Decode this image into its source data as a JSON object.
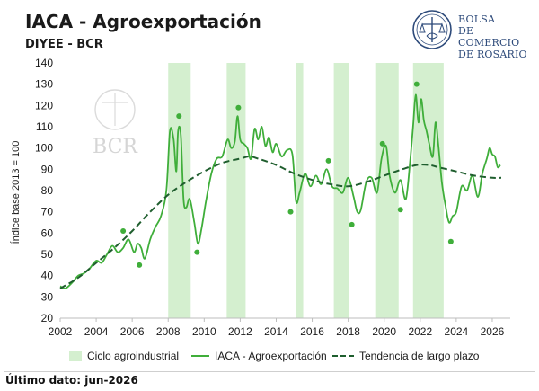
{
  "header": {
    "title": "IACA - Agroexportación",
    "subtitle": "DIYEE - BCR",
    "brand_lines": [
      "BOLSA",
      "DE COMERCIO",
      "DE ROSARIO"
    ],
    "watermark": "BCR"
  },
  "footnote": "Último dato: jun-2026",
  "colors": {
    "band": "#d4efcf",
    "line": "#3fae3a",
    "dots": "#3fae3a",
    "trend": "#1f5e2e",
    "brand": "#2d4a7a"
  },
  "chart_data": {
    "type": "line",
    "title": "IACA - Agroexportación",
    "ylabel": "Índice base 2013 = 100",
    "xlabel": "",
    "xlim": [
      2002,
      2027
    ],
    "ylim": [
      20,
      140
    ],
    "yticks": [
      20,
      30,
      40,
      50,
      60,
      70,
      80,
      90,
      100,
      110,
      120,
      130,
      140
    ],
    "xticks": [
      2002,
      2004,
      2006,
      2008,
      2010,
      2012,
      2014,
      2016,
      2018,
      2020,
      2022,
      2024,
      2026
    ],
    "grid": false,
    "legend_position": "bottom",
    "legend": [
      "Ciclo agroindustrial",
      "IACA - Agroexportación",
      "Tendencia de largo plazo"
    ],
    "cycles": [
      [
        2008.0,
        2009.25
      ],
      [
        2011.25,
        2012.3
      ],
      [
        2015.1,
        2015.5
      ],
      [
        2017.2,
        2018.05
      ],
      [
        2019.5,
        2020.8
      ],
      [
        2021.6,
        2023.3
      ]
    ],
    "series": [
      {
        "name": "IACA - Agroexportación",
        "style": "solid",
        "x": [
          2002.0,
          2002.3,
          2002.7,
          2003.0,
          2003.3,
          2003.6,
          2004.0,
          2004.3,
          2004.6,
          2004.9,
          2005.2,
          2005.5,
          2005.8,
          2006.1,
          2006.3,
          2006.5,
          2006.7,
          2007.0,
          2007.3,
          2007.6,
          2007.9,
          2008.1,
          2008.3,
          2008.45,
          2008.55,
          2008.7,
          2008.85,
          2009.0,
          2009.2,
          2009.45,
          2009.65,
          2009.85,
          2010.1,
          2010.4,
          2010.7,
          2011.0,
          2011.3,
          2011.5,
          2011.7,
          2011.85,
          2012.0,
          2012.2,
          2012.4,
          2012.6,
          2012.8,
          2013.0,
          2013.2,
          2013.4,
          2013.6,
          2013.8,
          2014.0,
          2014.3,
          2014.6,
          2014.9,
          2015.1,
          2015.3,
          2015.6,
          2015.9,
          2016.2,
          2016.5,
          2016.8,
          2017.1,
          2017.4,
          2017.7,
          2018.0,
          2018.3,
          2018.5,
          2018.7,
          2019.0,
          2019.3,
          2019.6,
          2019.85,
          2020.1,
          2020.3,
          2020.6,
          2020.9,
          2021.2,
          2021.45,
          2021.6,
          2021.75,
          2021.9,
          2022.05,
          2022.2,
          2022.35,
          2022.5,
          2022.7,
          2022.85,
          2023.0,
          2023.2,
          2023.4,
          2023.6,
          2023.8,
          2024.0,
          2024.3,
          2024.6,
          2024.9,
          2025.2,
          2025.45,
          2025.7,
          2025.85,
          2026.0,
          2026.15,
          2026.3,
          2026.45
        ],
        "values": [
          35,
          34,
          37,
          40,
          41,
          43,
          47,
          46,
          50,
          54,
          51,
          53,
          57,
          51,
          55,
          53,
          48,
          57,
          63,
          68,
          80,
          108,
          104,
          89,
          108,
          106,
          76,
          72,
          76,
          65,
          55,
          62,
          75,
          88,
          95,
          96,
          104,
          100,
          103,
          115,
          104,
          102,
          100,
          95,
          109,
          104,
          110,
          101,
          105,
          98,
          102,
          96,
          99,
          97,
          75,
          79,
          88,
          82,
          87,
          83,
          90,
          82,
          81,
          79,
          86,
          77,
          70,
          71,
          84,
          86,
          79,
          95,
          101,
          87,
          79,
          85,
          76,
          95,
          110,
          125,
          112,
          123,
          113,
          108,
          102,
          96,
          112,
          102,
          84,
          73,
          65,
          68,
          70,
          82,
          80,
          87,
          77,
          88,
          95,
          100,
          97,
          96,
          91,
          92
        ]
      },
      {
        "name": "Tendencia de largo plazo",
        "style": "dashed",
        "x": [
          2002,
          2003,
          2004,
          2005,
          2006,
          2007,
          2008,
          2009,
          2010,
          2011,
          2012,
          2012.5,
          2013,
          2014,
          2015,
          2016,
          2017,
          2018,
          2019,
          2020,
          2021,
          2021.8,
          2022.5,
          2023,
          2024,
          2025,
          2026,
          2026.5
        ],
        "values": [
          34,
          39,
          46,
          53,
          61,
          70,
          78,
          84,
          89,
          93,
          95,
          96,
          95,
          92,
          88,
          85,
          83,
          82,
          84,
          87,
          90,
          92,
          92,
          91,
          89,
          87,
          86,
          86
        ]
      },
      {
        "name": "Puntos extremos",
        "style": "markers",
        "x": [
          2005.5,
          2006.4,
          2008.6,
          2009.6,
          2011.9,
          2014.8,
          2016.9,
          2018.2,
          2019.9,
          2020.9,
          2021.8,
          2023.7
        ],
        "values": [
          61,
          45,
          115,
          51,
          119,
          70,
          94,
          64,
          102,
          71,
          130,
          56
        ]
      }
    ]
  }
}
